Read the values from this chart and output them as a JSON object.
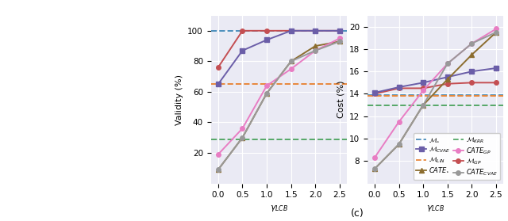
{
  "x": [
    0,
    0.5,
    1.0,
    1.5,
    2.0,
    2.5
  ],
  "validity": {
    "M_star": [
      100,
      100,
      100,
      100,
      100,
      100
    ],
    "M_lin": [
      65,
      65,
      65,
      65,
      65,
      65
    ],
    "M_krr": [
      29,
      29,
      29,
      29,
      29,
      29
    ],
    "M_gp": [
      76,
      100,
      100,
      100,
      100,
      100
    ],
    "M_cvae": [
      65,
      87,
      94,
      100,
      100,
      100
    ],
    "CATE_star": [
      9,
      30,
      59,
      80,
      90,
      93
    ],
    "CATE_gp": [
      19,
      36,
      64,
      75,
      87,
      95
    ],
    "CATE_cvae": [
      9,
      30,
      59,
      80,
      87,
      93
    ]
  },
  "cost": {
    "M_star": [
      13.9,
      13.9,
      13.9,
      13.9,
      13.9,
      13.9
    ],
    "M_lin": [
      13.8,
      13.8,
      13.8,
      13.8,
      13.8,
      13.8
    ],
    "M_krr": [
      13.0,
      13.0,
      13.0,
      13.0,
      13.0,
      13.0
    ],
    "M_gp": [
      14.0,
      14.5,
      14.5,
      14.9,
      15.0,
      15.0
    ],
    "M_cvae": [
      14.1,
      14.6,
      15.0,
      15.5,
      16.0,
      16.3
    ],
    "CATE_star": [
      7.3,
      9.5,
      13.0,
      15.3,
      17.5,
      19.5
    ],
    "CATE_gp": [
      8.3,
      11.5,
      14.3,
      16.7,
      18.5,
      19.8
    ],
    "CATE_cvae": [
      7.3,
      9.5,
      13.0,
      16.7,
      18.5,
      19.5
    ]
  },
  "colors": {
    "M_star": "#4c8fbd",
    "M_lin": "#e8873a",
    "M_krr": "#55a868",
    "M_gp": "#c44e52",
    "M_cvae": "#6b5ea8",
    "CATE_star": "#8c6d2f",
    "CATE_gp": "#e87dc3",
    "CATE_cvae": "#999999"
  },
  "ax_bg": "#eaeaf4",
  "validity_ylim": [
    0,
    110
  ],
  "validity_yticks": [
    20,
    40,
    60,
    80,
    100
  ],
  "cost_ylim": [
    6,
    21
  ],
  "cost_yticks": [
    8,
    10,
    12,
    14,
    16,
    18,
    20
  ],
  "xlabel": "$\\gamma_{LCB}$",
  "ylabel_validity": "Validity (%)",
  "ylabel_cost": "Cost (%)",
  "legend_labels": {
    "M_star": "$\\mathcal{M}_{\\star}$",
    "M_lin": "$\\mathcal{M}_{LIN}$",
    "M_krr": "$\\mathcal{M}_{KRR}$",
    "M_gp": "$\\mathcal{M}_{GP}$",
    "M_cvae": "$\\mathcal{M}_{CVAE}$",
    "CATE_star": "$CATE_{\\star}$",
    "CATE_gp": "$CATE_{GP}$",
    "CATE_cvae": "$CATE_{CVAE}$"
  }
}
